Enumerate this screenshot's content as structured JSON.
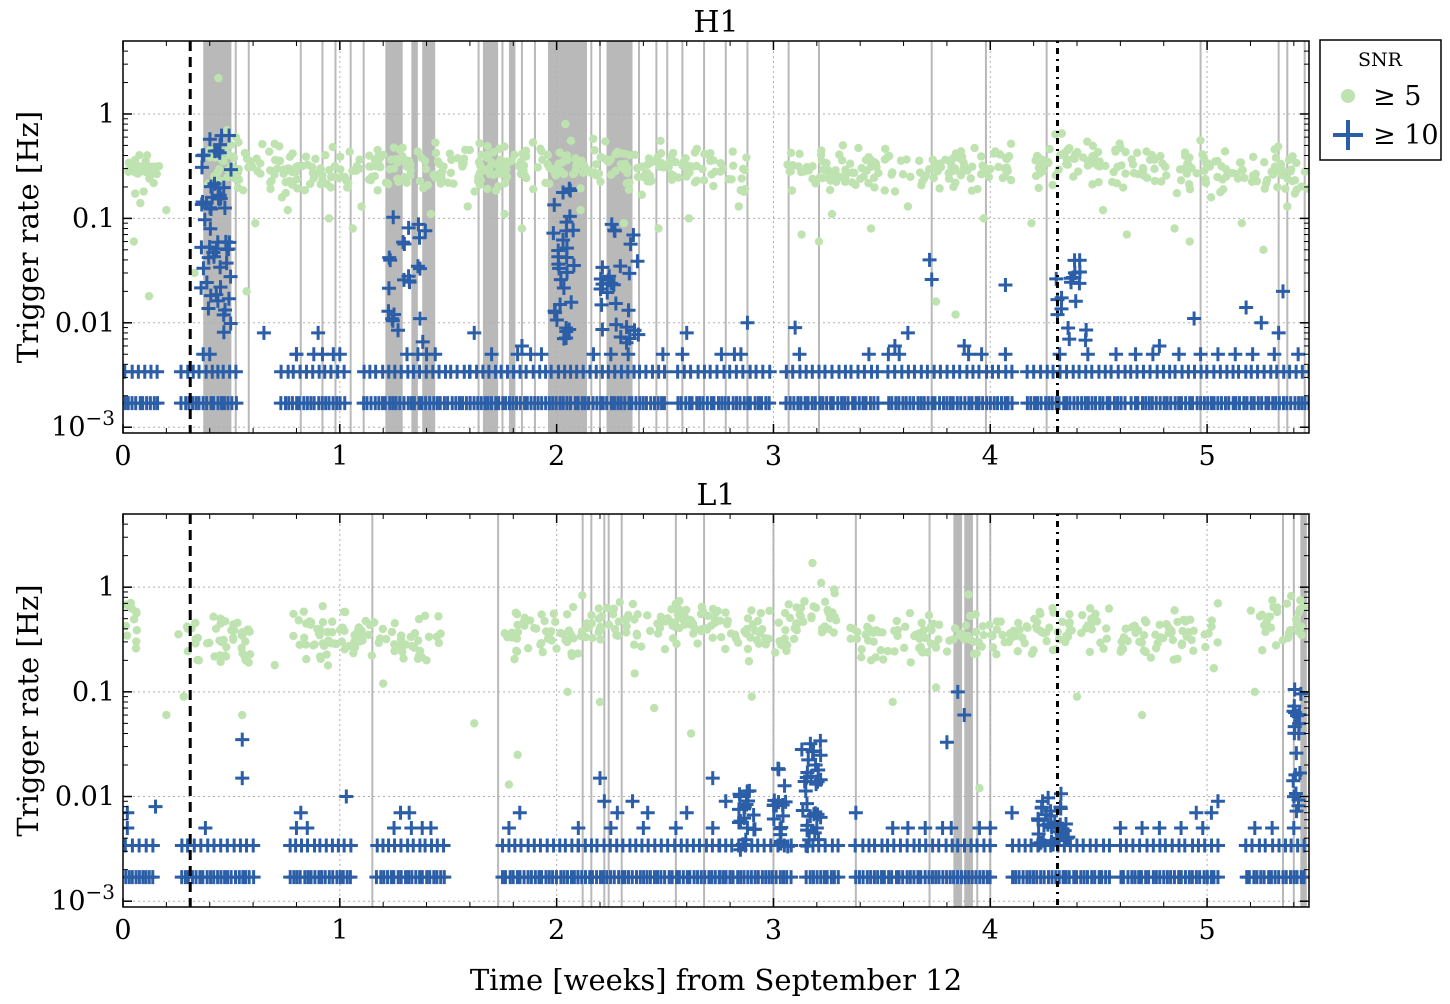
{
  "figure": {
    "xlabel": "Time [weeks] from September 12",
    "ylabel": "Trigger rate [Hz]",
    "legend_title": "SNR",
    "legend": {
      "snr5_label": "≥ 5",
      "snr10_label": "≥ 10"
    }
  },
  "colors": {
    "snr5": "#bfe3b0",
    "snr10": "#2b5ea7",
    "veto": "#b9b9b9",
    "grid": "#b0b0b0"
  },
  "chart_data": [
    {
      "type": "scatter",
      "title": "H1",
      "xlabel": "",
      "ylabel": "Trigger rate [Hz]",
      "xlim": [
        0,
        5.47
      ],
      "ylim": [
        0.00088,
        5
      ],
      "yscale": "log",
      "xticks": [
        0,
        1,
        2,
        3,
        4,
        5
      ],
      "xtick_labels": [
        "0",
        "1",
        "2",
        "3",
        "4",
        "5"
      ],
      "yticks": [
        0.001,
        0.01,
        0.1,
        1
      ],
      "ytick_labels": [
        "10−3",
        "0.01",
        "0.1",
        "1"
      ],
      "grid": true,
      "event_lines": [
        {
          "x": 0.31,
          "style": "dashed"
        },
        {
          "x": 4.31,
          "style": "dotted"
        }
      ],
      "veto_bands": [
        [
          0.37,
          0.5
        ],
        [
          1.21,
          1.29
        ],
        [
          1.33,
          1.36
        ],
        [
          1.38,
          1.44
        ],
        [
          1.66,
          1.73
        ],
        [
          1.78,
          1.81
        ],
        [
          1.96,
          2.14
        ],
        [
          2.23,
          2.35
        ]
      ],
      "veto_lines": [
        0.52,
        0.58,
        0.82,
        0.92,
        0.98,
        1.05,
        1.11,
        1.64,
        1.75,
        1.84,
        1.9,
        2.16,
        2.2,
        2.38,
        2.46,
        2.51,
        2.58,
        2.68,
        2.78,
        2.88,
        3.07,
        3.21,
        3.73,
        3.98,
        4.26,
        4.97,
        5.33,
        5.37,
        5.45
      ],
      "series": [
        {
          "name": "≥ 5",
          "marker": "circle",
          "clusters": [
            {
              "x0": 0.01,
              "x1": 0.17,
              "y": 0.3,
              "n": 28
            },
            {
              "x0": 0.38,
              "x1": 0.55,
              "y": 0.3,
              "n": 32
            },
            {
              "x0": 0.55,
              "x1": 1.05,
              "y": 0.3,
              "n": 75
            },
            {
              "x0": 1.05,
              "x1": 1.65,
              "y": 0.3,
              "n": 85
            },
            {
              "x0": 1.65,
              "x1": 2.4,
              "y": 0.33,
              "n": 120
            },
            {
              "x0": 2.4,
              "x1": 2.88,
              "y": 0.3,
              "n": 65
            },
            {
              "x0": 3.06,
              "x1": 3.5,
              "y": 0.3,
              "n": 65
            },
            {
              "x0": 3.5,
              "x1": 4.1,
              "y": 0.3,
              "n": 80
            },
            {
              "x0": 4.2,
              "x1": 4.7,
              "y": 0.33,
              "n": 70
            },
            {
              "x0": 4.7,
              "x1": 5.47,
              "y": 0.28,
              "n": 95
            }
          ],
          "scattered": [
            [
              0.08,
              0.14
            ],
            [
              0.05,
              0.06
            ],
            [
              0.12,
              0.018
            ],
            [
              0.2,
              0.12
            ],
            [
              0.33,
              0.03
            ],
            [
              0.44,
              2.2
            ],
            [
              0.48,
              0.7
            ],
            [
              0.57,
              0.02
            ],
            [
              0.61,
              0.09
            ],
            [
              0.76,
              0.12
            ],
            [
              0.95,
              0.1
            ],
            [
              1.06,
              0.08
            ],
            [
              1.1,
              0.13
            ],
            [
              1.42,
              0.11
            ],
            [
              1.59,
              0.13
            ],
            [
              1.76,
              0.11
            ],
            [
              1.84,
              0.08
            ],
            [
              2.04,
              0.8
            ],
            [
              2.11,
              0.12
            ],
            [
              2.31,
              0.09
            ],
            [
              2.47,
              0.08
            ],
            [
              2.61,
              0.1
            ],
            [
              2.84,
              0.13
            ],
            [
              3.13,
              0.07
            ],
            [
              3.21,
              0.06
            ],
            [
              3.27,
              0.11
            ],
            [
              3.45,
              0.08
            ],
            [
              3.62,
              0.13
            ],
            [
              3.75,
              0.016
            ],
            [
              3.84,
              0.012
            ],
            [
              3.97,
              0.1
            ],
            [
              4.19,
              0.09
            ],
            [
              4.33,
              0.65
            ],
            [
              4.52,
              0.12
            ],
            [
              4.63,
              0.07
            ],
            [
              4.85,
              0.08
            ],
            [
              4.92,
              0.06
            ],
            [
              5.16,
              0.09
            ],
            [
              5.26,
              0.05
            ],
            [
              5.37,
              0.13
            ]
          ]
        },
        {
          "name": "≥ 10",
          "marker": "plus",
          "baseline_rates": [
            0.0017,
            0.0034
          ],
          "baseline_segments": [
            [
              0.01,
              0.16
            ],
            [
              0.27,
              0.52
            ],
            [
              0.73,
              1.02
            ],
            [
              1.11,
              1.6
            ],
            [
              1.6,
              2.5
            ],
            [
              2.56,
              2.98
            ],
            [
              3.06,
              3.48
            ],
            [
              3.53,
              4.1
            ],
            [
              4.17,
              4.62
            ],
            [
              4.65,
              5.47
            ]
          ],
          "low_rate": 0.005,
          "low_points": [
            0.37,
            0.4,
            0.8,
            0.8,
            0.88,
            0.92,
            0.97,
            1.0,
            1.31,
            1.36,
            1.4,
            1.44,
            1.7,
            1.82,
            1.88,
            1.93,
            2.17,
            2.25,
            2.33,
            2.49,
            2.58,
            2.76,
            2.82,
            2.85,
            3.12,
            3.44,
            3.53,
            3.58,
            3.9,
            3.96,
            4.07,
            4.32,
            4.45,
            4.58,
            4.67,
            4.75,
            4.87,
            4.97,
            5.05,
            5.13,
            5.21,
            5.31,
            5.42
          ],
          "bursts": [
            {
              "x0": 0.36,
              "x1": 0.5,
              "ylo": 0.008,
              "yhi": 0.7,
              "n": 55
            },
            {
              "x0": 1.22,
              "x1": 1.41,
              "ylo": 0.006,
              "yhi": 0.13,
              "n": 22
            },
            {
              "x0": 1.98,
              "x1": 2.08,
              "ylo": 0.006,
              "yhi": 0.2,
              "n": 30
            },
            {
              "x0": 2.2,
              "x1": 2.38,
              "ylo": 0.006,
              "yhi": 0.09,
              "n": 28
            },
            {
              "x0": 4.3,
              "x1": 4.45,
              "ylo": 0.006,
              "yhi": 0.04,
              "n": 18
            }
          ],
          "scattered": [
            [
              0.65,
              0.008
            ],
            [
              0.9,
              0.008
            ],
            [
              1.25,
              0.012
            ],
            [
              1.62,
              0.008
            ],
            [
              1.84,
              0.006
            ],
            [
              2.6,
              0.008
            ],
            [
              2.88,
              0.01
            ],
            [
              3.1,
              0.009
            ],
            [
              3.56,
              0.006
            ],
            [
              3.62,
              0.008
            ],
            [
              3.72,
              0.04
            ],
            [
              3.73,
              0.026
            ],
            [
              3.88,
              0.006
            ],
            [
              4.07,
              0.023
            ],
            [
              4.78,
              0.006
            ],
            [
              4.94,
              0.011
            ],
            [
              5.18,
              0.014
            ],
            [
              5.25,
              0.01
            ],
            [
              5.33,
              0.008
            ],
            [
              5.35,
              0.02
            ]
          ]
        }
      ]
    },
    {
      "type": "scatter",
      "title": "L1",
      "xlabel": "Time [weeks] from September 12",
      "ylabel": "Trigger rate [Hz]",
      "xlim": [
        0,
        5.47
      ],
      "ylim": [
        0.00088,
        5
      ],
      "yscale": "log",
      "xticks": [
        0,
        1,
        2,
        3,
        4,
        5
      ],
      "xtick_labels": [
        "0",
        "1",
        "2",
        "3",
        "4",
        "5"
      ],
      "yticks": [
        0.001,
        0.01,
        0.1,
        1
      ],
      "ytick_labels": [
        "10−3",
        "0.01",
        "0.1",
        "1"
      ],
      "grid": true,
      "event_lines": [
        {
          "x": 0.31,
          "style": "dashed"
        },
        {
          "x": 4.31,
          "style": "dotted"
        }
      ],
      "veto_bands": [
        [
          3.83,
          3.87
        ],
        [
          3.88,
          3.92
        ],
        [
          5.43,
          5.46
        ]
      ],
      "veto_lines": [
        1.15,
        1.73,
        2.12,
        2.16,
        2.22,
        2.24,
        2.3,
        2.55,
        2.68,
        3.0,
        3.38,
        3.72,
        3.94,
        4.0,
        5.35,
        5.4
      ],
      "series": [
        {
          "name": "≥ 5",
          "marker": "circle",
          "clusters": [
            {
              "x0": 0.01,
              "x1": 0.07,
              "y": 0.48,
              "n": 12
            },
            {
              "x0": 0.25,
              "x1": 0.6,
              "y": 0.32,
              "n": 45
            },
            {
              "x0": 0.78,
              "x1": 1.05,
              "y": 0.33,
              "n": 40
            },
            {
              "x0": 1.05,
              "x1": 1.48,
              "y": 0.3,
              "n": 50
            },
            {
              "x0": 1.75,
              "x1": 2.1,
              "y": 0.36,
              "n": 45
            },
            {
              "x0": 2.1,
              "x1": 2.75,
              "y": 0.45,
              "n": 90
            },
            {
              "x0": 2.75,
              "x1": 3.1,
              "y": 0.38,
              "n": 45
            },
            {
              "x0": 3.1,
              "x1": 3.3,
              "y": 0.55,
              "n": 28
            },
            {
              "x0": 3.35,
              "x1": 3.95,
              "y": 0.35,
              "n": 70
            },
            {
              "x0": 3.95,
              "x1": 4.55,
              "y": 0.4,
              "n": 70
            },
            {
              "x0": 4.6,
              "x1": 5.05,
              "y": 0.33,
              "n": 55
            },
            {
              "x0": 5.18,
              "x1": 5.45,
              "y": 0.45,
              "n": 30
            }
          ],
          "scattered": [
            [
              0.06,
              0.26
            ],
            [
              0.2,
              0.06
            ],
            [
              0.28,
              0.09
            ],
            [
              0.35,
              0.2
            ],
            [
              0.45,
              0.5
            ],
            [
              0.55,
              0.06
            ],
            [
              0.7,
              0.18
            ],
            [
              1.02,
              0.58
            ],
            [
              1.2,
              0.12
            ],
            [
              1.4,
              0.2
            ],
            [
              1.62,
              0.05
            ],
            [
              1.78,
              0.013
            ],
            [
              1.82,
              0.025
            ],
            [
              2.05,
              0.1
            ],
            [
              2.2,
              0.08
            ],
            [
              2.36,
              0.15
            ],
            [
              2.45,
              0.07
            ],
            [
              2.62,
              0.04
            ],
            [
              2.9,
              0.09
            ],
            [
              3.18,
              1.7
            ],
            [
              3.22,
              1.1
            ],
            [
              3.28,
              0.95
            ],
            [
              3.45,
              0.2
            ],
            [
              3.55,
              0.08
            ],
            [
              3.75,
              0.11
            ],
            [
              3.9,
              0.85
            ],
            [
              3.95,
              0.012
            ],
            [
              4.2,
              0.25
            ],
            [
              4.4,
              0.09
            ],
            [
              4.7,
              0.06
            ],
            [
              4.85,
              0.6
            ],
            [
              5.05,
              0.7
            ],
            [
              5.22,
              0.1
            ],
            [
              5.43,
              0.75
            ]
          ]
        },
        {
          "name": "≥ 10",
          "marker": "plus",
          "baseline_rates": [
            0.0017,
            0.0034
          ],
          "baseline_segments": [
            [
              0.01,
              0.14
            ],
            [
              0.27,
              0.6
            ],
            [
              0.77,
              1.05
            ],
            [
              1.17,
              1.48
            ],
            [
              1.75,
              2.1
            ],
            [
              2.1,
              2.75
            ],
            [
              2.75,
              3.08
            ],
            [
              3.15,
              3.3
            ],
            [
              3.38,
              4.0
            ],
            [
              4.1,
              4.55
            ],
            [
              4.6,
              5.05
            ],
            [
              5.18,
              5.45
            ]
          ],
          "low_rate": 0.005,
          "low_points": [
            0.02,
            0.38,
            0.8,
            0.85,
            1.25,
            1.33,
            1.38,
            1.42,
            1.78,
            2.1,
            2.25,
            2.4,
            2.55,
            2.72,
            2.88,
            3.2,
            3.55,
            3.62,
            3.7,
            3.78,
            3.82,
            3.95,
            4.0,
            4.6,
            4.7,
            4.78,
            4.88,
            4.98,
            5.22,
            5.3,
            5.4
          ],
          "bursts": [
            {
              "x0": 2.84,
              "x1": 2.92,
              "ylo": 0.003,
              "yhi": 0.012,
              "n": 18
            },
            {
              "x0": 3.0,
              "x1": 3.07,
              "ylo": 0.003,
              "yhi": 0.02,
              "n": 18
            },
            {
              "x0": 3.13,
              "x1": 3.22,
              "ylo": 0.003,
              "yhi": 0.035,
              "n": 30
            },
            {
              "x0": 4.22,
              "x1": 4.36,
              "ylo": 0.0034,
              "yhi": 0.011,
              "n": 34
            },
            {
              "x0": 5.39,
              "x1": 5.44,
              "ylo": 0.005,
              "yhi": 0.11,
              "n": 20
            }
          ],
          "scattered": [
            [
              0.02,
              0.007
            ],
            [
              0.15,
              0.008
            ],
            [
              0.55,
              0.035
            ],
            [
              0.55,
              0.015
            ],
            [
              1.03,
              0.01
            ],
            [
              0.82,
              0.007
            ],
            [
              1.28,
              0.007
            ],
            [
              1.32,
              0.007
            ],
            [
              1.83,
              0.007
            ],
            [
              2.2,
              0.015
            ],
            [
              2.22,
              0.009
            ],
            [
              2.28,
              0.007
            ],
            [
              2.35,
              0.009
            ],
            [
              2.42,
              0.007
            ],
            [
              2.6,
              0.007
            ],
            [
              2.72,
              0.015
            ],
            [
              2.78,
              0.009
            ],
            [
              3.38,
              0.007
            ],
            [
              3.8,
              0.033
            ],
            [
              3.85,
              0.1
            ],
            [
              3.88,
              0.06
            ],
            [
              4.1,
              0.007
            ],
            [
              4.95,
              0.007
            ],
            [
              5.05,
              0.009
            ],
            [
              5.02,
              0.007
            ]
          ]
        }
      ]
    }
  ]
}
